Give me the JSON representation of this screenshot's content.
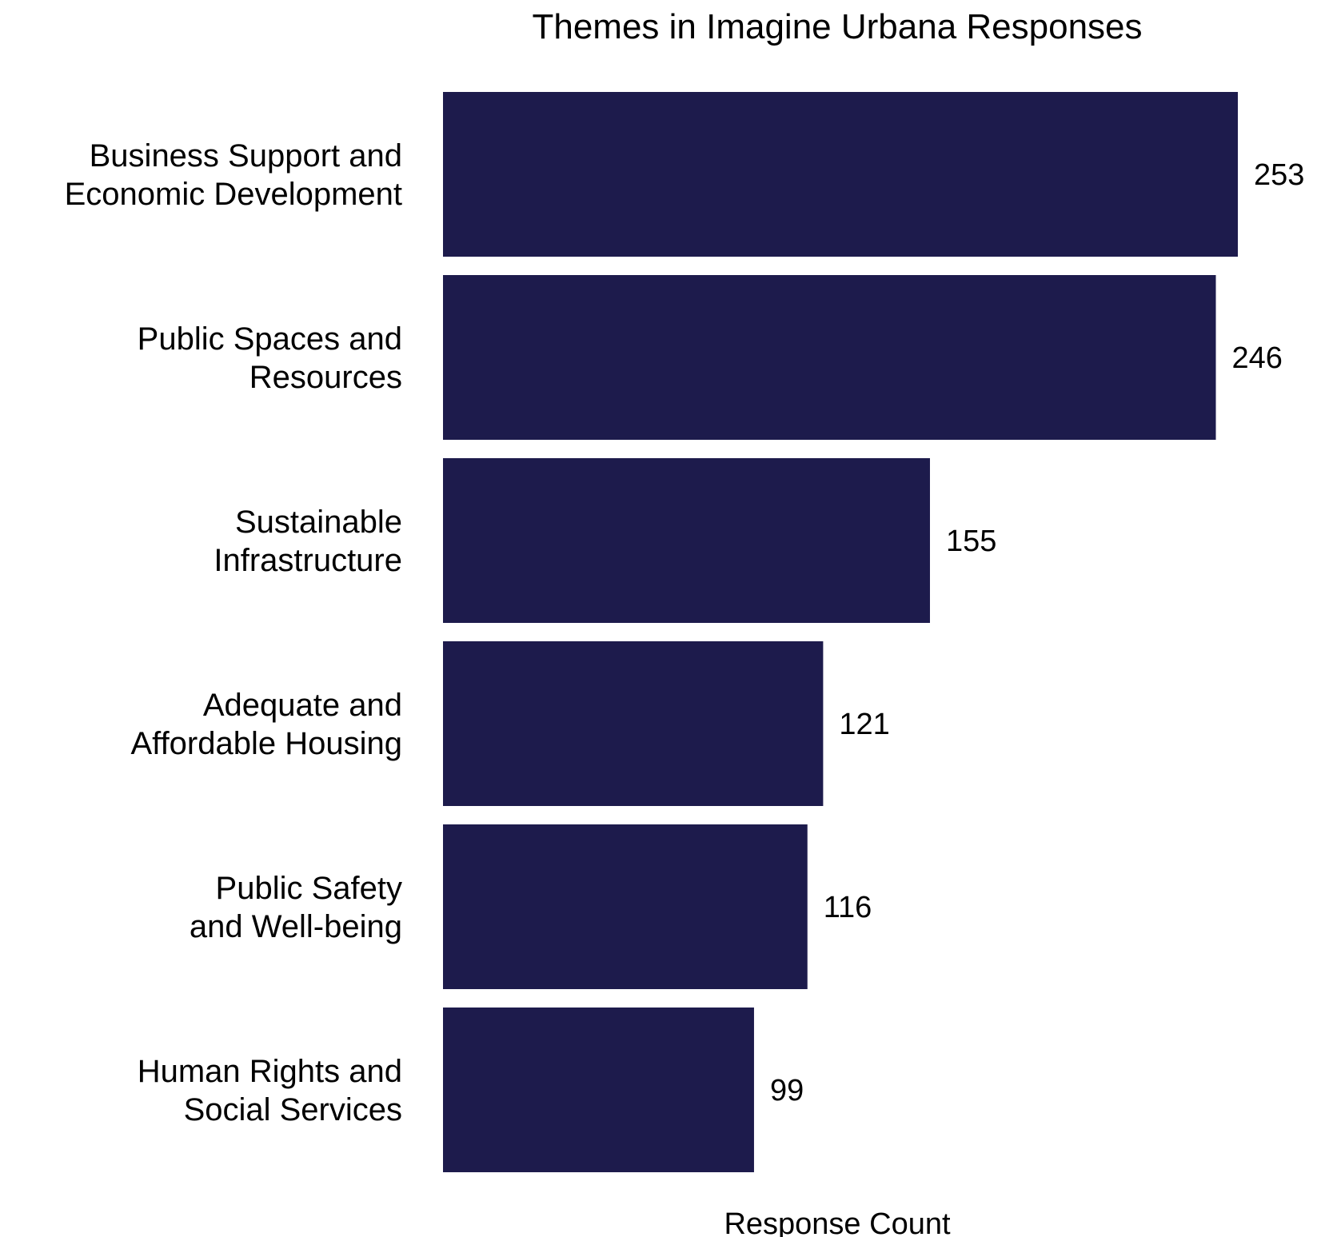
{
  "chart_data": {
    "type": "bar",
    "orientation": "horizontal",
    "title": "Themes in Imagine Urbana Responses",
    "xlabel": "Response Count",
    "ylabel": "",
    "categories": [
      [
        "Business Support and",
        "Economic Development"
      ],
      [
        "Public Spaces and",
        "Resources"
      ],
      [
        "Sustainable",
        "Infrastructure"
      ],
      [
        "Adequate and",
        "Affordable Housing"
      ],
      [
        "Public Safety",
        "and Well-being"
      ],
      [
        "Human Rights and",
        "Social Services"
      ]
    ],
    "values": [
      253,
      246,
      155,
      121,
      116,
      99
    ],
    "xlim": [
      0,
      253
    ],
    "grid": false,
    "legend": "none",
    "colors": {
      "bar": "#1d1b4c"
    }
  }
}
